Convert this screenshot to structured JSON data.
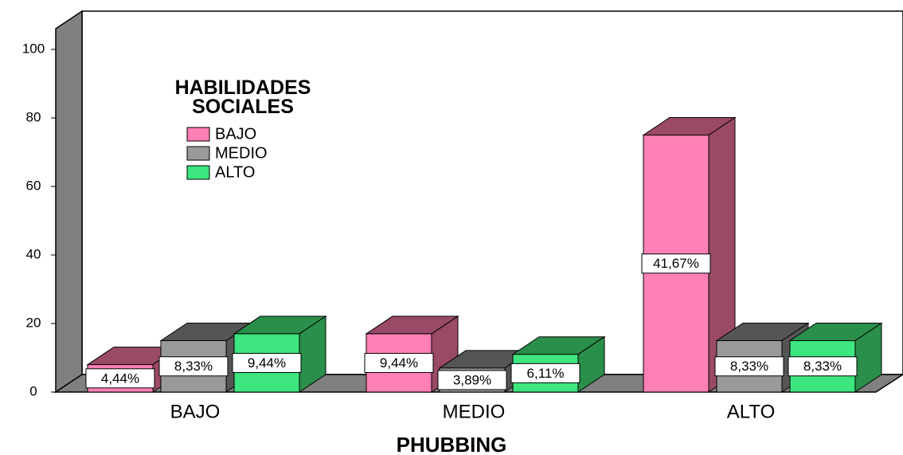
{
  "chart_data": {
    "type": "bar3d",
    "categories": [
      "BAJO",
      "MEDIO",
      "ALTO"
    ],
    "x_label": "PHUBBING",
    "legend_title": "HABILIDADES SOCIALES",
    "series": [
      {
        "name": "BAJO",
        "color": "#ff80b4",
        "side_color": "#9a4a66",
        "values": [
          8,
          17,
          75
        ],
        "value_labels": [
          "4,44%",
          "9,44%",
          "41,67%"
        ]
      },
      {
        "name": "MEDIO",
        "color": "#9a9a9a",
        "side_color": "#555555",
        "values": [
          15,
          7,
          15
        ],
        "value_labels": [
          "8,33%",
          "3,89%",
          "8,33%"
        ]
      },
      {
        "name": "ALTO",
        "color": "#3de67e",
        "side_color": "#2a8f4a",
        "values": [
          17,
          11,
          15
        ],
        "value_labels": [
          "9,44%",
          "6,11%",
          "8,33%"
        ]
      }
    ],
    "ylim": [
      0,
      100
    ],
    "yticks": [
      0,
      20,
      40,
      60,
      80,
      100
    ],
    "legend": "upper left"
  }
}
